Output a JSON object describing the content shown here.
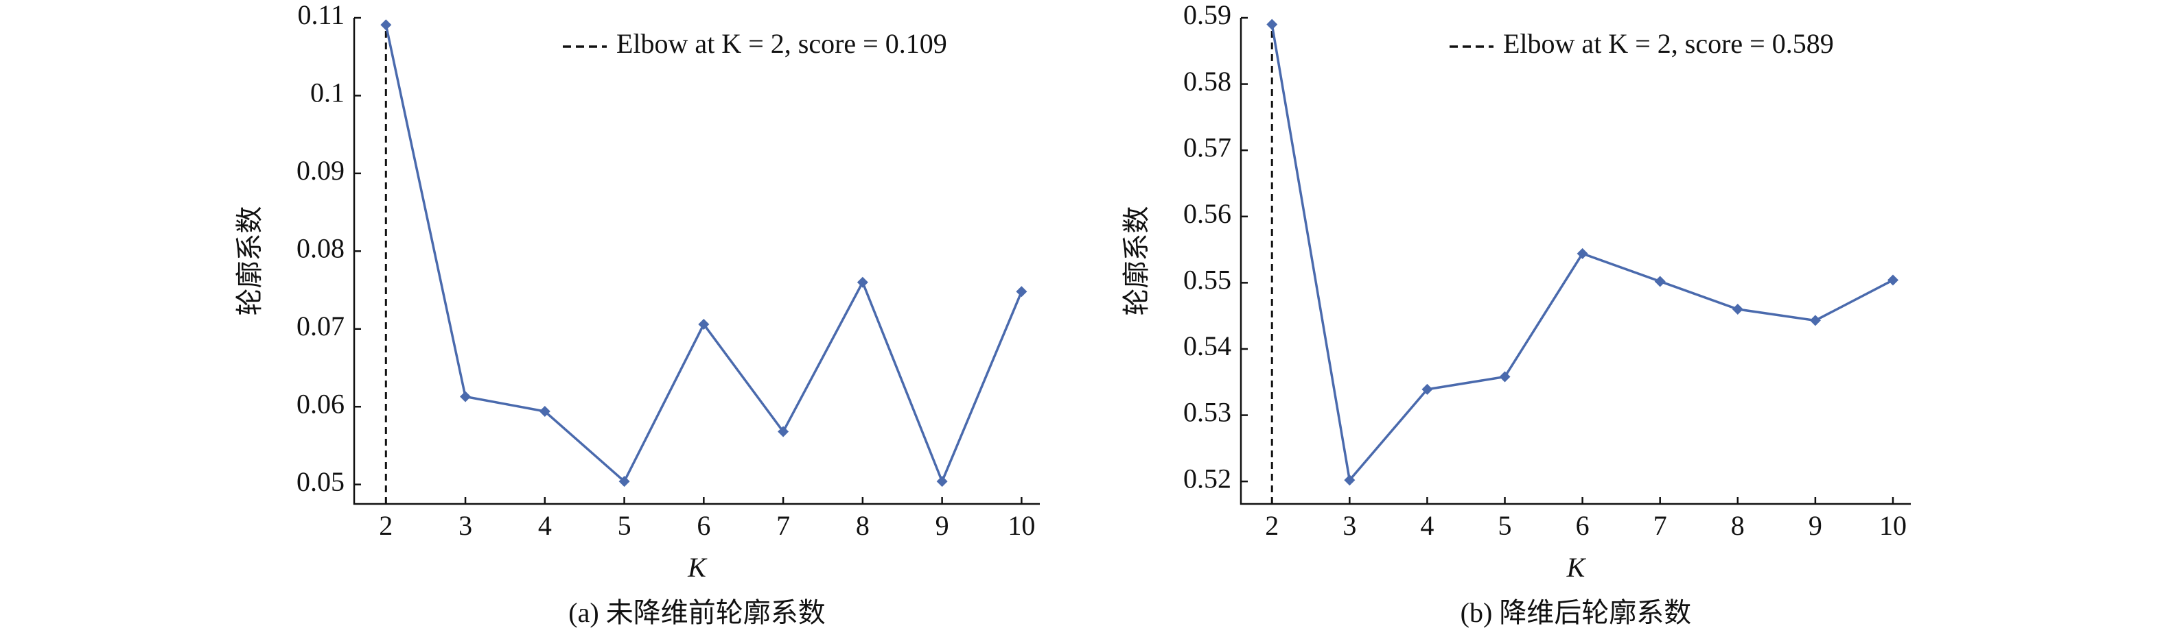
{
  "chart_data": [
    {
      "type": "line",
      "title": "(a) 未降维前轮廓系数",
      "x_label": "K",
      "y_label": "轮廓系数",
      "x": [
        2,
        3,
        4,
        5,
        6,
        7,
        8,
        9,
        10
      ],
      "values": [
        0.1091,
        0.0613,
        0.0594,
        0.0504,
        0.0706,
        0.0568,
        0.076,
        0.0504,
        0.0748
      ],
      "color": "#4a6aad",
      "xlim": [
        1.6,
        10.23
      ],
      "xticks": [
        2,
        3,
        4,
        5,
        6,
        7,
        8,
        9,
        10
      ],
      "ylim": [
        0.0475,
        0.11
      ],
      "yticks": [
        0.05,
        0.06,
        0.07,
        0.08,
        0.09,
        0.1,
        0.11
      ],
      "elbow": {
        "x": 2,
        "label": "Elbow at K = 2, score = 0.109"
      }
    },
    {
      "type": "line",
      "title": "(b) 降维后轮廓系数",
      "x_label": "K",
      "y_label": "轮廓系数",
      "x": [
        2,
        3,
        4,
        5,
        6,
        7,
        8,
        9,
        10
      ],
      "values": [
        0.589,
        0.5202,
        0.5339,
        0.5358,
        0.5544,
        0.5502,
        0.546,
        0.5443,
        0.5504
      ],
      "color": "#4a6aad",
      "xlim": [
        1.6,
        10.23
      ],
      "xticks": [
        2,
        3,
        4,
        5,
        6,
        7,
        8,
        9,
        10
      ],
      "ylim": [
        0.5166,
        0.59
      ],
      "yticks": [
        0.52,
        0.53,
        0.54,
        0.55,
        0.56,
        0.57,
        0.58,
        0.59
      ],
      "elbow": {
        "x": 2,
        "label": "Elbow at K = 2, score = 0.589"
      }
    }
  ]
}
